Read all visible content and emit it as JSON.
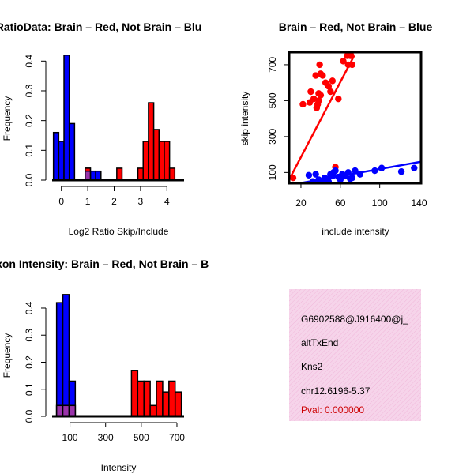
{
  "colors": {
    "brain": "#ff0000",
    "not_brain": "#0000ff",
    "overlap": "#9933aa",
    "info_bg": "#f8d8ec",
    "pval_text": "#cc0000"
  },
  "chart_data": [
    {
      "type": "bar",
      "title": "RatioData: Brain – Red, Not Brain – Blu",
      "xlabel": "Log2 Ratio Skip/Include",
      "ylabel": "Frequency",
      "xlim": [
        -0.35,
        4.65
      ],
      "ylim": [
        0,
        0.43
      ],
      "xticks": [
        0,
        1,
        2,
        3,
        4
      ],
      "yticks": [
        0.0,
        0.1,
        0.2,
        0.3,
        0.4
      ],
      "bin_start": -0.3,
      "bin_width": 0.2,
      "series": [
        {
          "name": "Not Brain",
          "color": "blue",
          "values": [
            0.16,
            0.13,
            0.42,
            0.19,
            0,
            0,
            0.04,
            0.03,
            0.03
          ]
        },
        {
          "name": "Brain",
          "color": "red",
          "values": [
            0,
            0,
            0,
            0,
            0,
            0,
            0.04,
            0,
            0,
            0,
            0,
            0,
            0.04,
            0,
            0,
            0,
            0.04,
            0.13,
            0.26,
            0.17,
            0.13,
            0.13,
            0.04
          ]
        },
        {
          "name": "Overlap",
          "color": "purple",
          "values": [
            0,
            0,
            0,
            0,
            0,
            0,
            0.03,
            0,
            0
          ]
        }
      ]
    },
    {
      "type": "scatter",
      "title": "Brain – Red, Not Brain – Blue",
      "xlabel": "include intensity",
      "ylabel": "skip intensity",
      "xlim": [
        8,
        142
      ],
      "ylim": [
        40,
        770
      ],
      "xticks": [
        20,
        60,
        100,
        140
      ],
      "yticks": [
        100,
        300,
        500,
        700
      ],
      "series": [
        {
          "name": "Brain",
          "color": "red",
          "x": [
            12,
            22,
            29,
            30,
            33,
            35,
            36,
            37,
            38,
            38,
            39,
            40,
            40,
            42,
            45,
            48,
            50,
            52,
            55,
            58,
            63,
            67,
            68,
            70,
            71,
            72
          ],
          "y": [
            70,
            480,
            490,
            550,
            510,
            640,
            460,
            480,
            500,
            540,
            700,
            530,
            650,
            640,
            600,
            580,
            550,
            610,
            130,
            510,
            720,
            750,
            700,
            750,
            750,
            700
          ],
          "fit": {
            "x": [
              8,
              74
            ],
            "y": [
              60,
              750
            ]
          }
        },
        {
          "name": "Not Brain",
          "color": "blue",
          "x": [
            28,
            32,
            35,
            38,
            40,
            42,
            44,
            46,
            48,
            50,
            52,
            53,
            55,
            58,
            60,
            62,
            65,
            68,
            70,
            72,
            75,
            80,
            95,
            102,
            122,
            135
          ],
          "y": [
            85,
            50,
            90,
            60,
            40,
            45,
            70,
            65,
            50,
            90,
            80,
            100,
            110,
            75,
            60,
            90,
            80,
            100,
            65,
            70,
            110,
            90,
            110,
            125,
            105,
            125
          ],
          "fit": {
            "x": [
              8,
              142
            ],
            "y": [
              30,
              160
            ]
          }
        }
      ]
    },
    {
      "type": "bar",
      "title": "Exon Intensity: Brain – Red, Not Brain – B",
      "xlabel": "Intensity",
      "ylabel": "Frequency",
      "xlim": [
        0,
        740
      ],
      "ylim": [
        0,
        0.47
      ],
      "xticks": [
        100,
        300,
        500,
        700
      ],
      "yticks": [
        0.0,
        0.1,
        0.2,
        0.3,
        0.4
      ],
      "bin_start": 25,
      "bin_width": 35,
      "series": [
        {
          "name": "Not Brain",
          "color": "blue",
          "values": [
            0.42,
            0.45,
            0.13
          ]
        },
        {
          "name": "Brain",
          "color": "red",
          "values": [
            0.04,
            0.04,
            0.04,
            0,
            0,
            0,
            0,
            0,
            0,
            0,
            0,
            0,
            0.17,
            0.13,
            0.13,
            0.04,
            0.13,
            0.09,
            0.13,
            0.09
          ]
        },
        {
          "name": "Overlap",
          "color": "purple",
          "values": [
            0.04,
            0.04,
            0.04
          ]
        }
      ]
    }
  ],
  "info_panel": {
    "probe_id": "G6902588@J916400@j_",
    "event_type": "altTxEnd",
    "gene": "Kns2",
    "location": "chr12.6196-5.37",
    "pval": "Pval: 0.000000"
  }
}
